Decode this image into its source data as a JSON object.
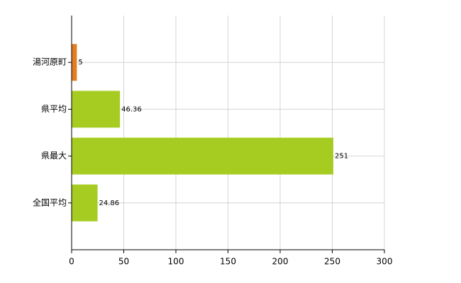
{
  "chart_data": {
    "type": "hbar",
    "categories": [
      "湯河原町",
      "県平均",
      "県最大",
      "全国平均"
    ],
    "values": [
      5,
      46.36,
      251,
      24.86
    ],
    "colors": [
      "#e27d22",
      "#a6cc22",
      "#a6cc22",
      "#a6cc22"
    ],
    "xlim": [
      0,
      300
    ],
    "xticks": [
      0,
      50,
      100,
      150,
      200,
      250,
      300
    ],
    "grid": true
  }
}
